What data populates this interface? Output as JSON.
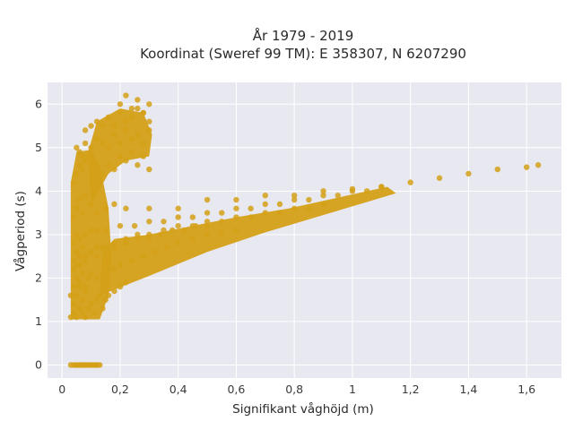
{
  "chart_data": {
    "type": "scatter",
    "title_line1": "År 1979 - 2019",
    "title_line2": "Koordinat (Sweref 99 TM): E 358307, N 6207290",
    "xlabel": "Signifikant våghöjd (m)",
    "ylabel": "Vågperiod (s)",
    "xlim": [
      -0.05,
      1.72
    ],
    "ylim": [
      -0.3,
      6.5
    ],
    "grid": true,
    "legend": "none",
    "colors": {
      "point": "#d4a017",
      "plot_bg": "#e8e8f0",
      "grid": "#ffffff"
    },
    "x_ticks": [
      {
        "value": 0,
        "label": "0"
      },
      {
        "value": 0.2,
        "label": "0,2"
      },
      {
        "value": 0.4,
        "label": "0,4"
      },
      {
        "value": 0.6,
        "label": "0,6"
      },
      {
        "value": 0.8,
        "label": "0,8"
      },
      {
        "value": 1.0,
        "label": "1"
      },
      {
        "value": 1.2,
        "label": "1,2"
      },
      {
        "value": 1.4,
        "label": "1,4"
      },
      {
        "value": 1.6,
        "label": "1,6"
      }
    ],
    "y_ticks": [
      {
        "value": 0,
        "label": "0"
      },
      {
        "value": 1,
        "label": "1"
      },
      {
        "value": 2,
        "label": "2"
      },
      {
        "value": 3,
        "label": "3"
      },
      {
        "value": 4,
        "label": "4"
      },
      {
        "value": 5,
        "label": "5"
      },
      {
        "value": 6,
        "label": "6"
      }
    ],
    "series": [
      {
        "x": [
          0.03,
          0.04,
          0.05,
          0.06,
          0.07,
          0.08,
          0.09,
          0.1,
          0.11,
          0.12,
          0.13,
          0.03,
          0.04,
          0.04,
          0.05,
          0.05,
          0.06,
          0.06,
          0.07,
          0.07,
          0.08,
          0.08,
          0.09,
          0.1,
          0.11,
          0.12,
          0.13,
          0.14,
          0.15,
          0.16,
          0.18,
          0.2,
          0.22,
          0.03,
          0.04,
          0.05,
          0.06,
          0.07,
          0.08,
          0.09,
          0.1,
          0.12,
          0.14,
          0.16,
          0.18,
          0.2,
          0.24,
          0.28,
          0.32,
          0.36,
          0.4,
          0.45,
          0.5,
          0.55,
          0.6,
          0.04,
          0.05,
          0.06,
          0.07,
          0.08,
          0.1,
          0.12,
          0.15,
          0.18,
          0.22,
          0.26,
          0.3,
          0.35,
          0.4,
          0.45,
          0.5,
          0.55,
          0.6,
          0.65,
          0.7,
          0.75,
          0.8,
          0.85,
          0.9,
          0.04,
          0.05,
          0.06,
          0.08,
          0.1,
          0.12,
          0.15,
          0.2,
          0.25,
          0.3,
          0.35,
          0.4,
          0.45,
          0.5,
          0.55,
          0.6,
          0.65,
          0.7,
          0.75,
          0.8,
          0.85,
          0.9,
          0.95,
          1.0,
          1.05,
          1.1,
          0.04,
          0.05,
          0.06,
          0.07,
          0.08,
          0.1,
          0.12,
          0.15,
          0.18,
          0.22,
          0.3,
          0.4,
          0.5,
          0.6,
          0.7,
          0.8,
          0.9,
          1.0,
          1.1,
          1.2,
          1.3,
          1.4,
          1.5,
          1.6,
          1.64,
          0.04,
          0.05,
          0.06,
          0.07,
          0.08,
          0.09,
          0.1,
          0.12,
          0.14,
          0.16,
          0.18,
          0.2,
          0.22,
          0.24,
          0.26,
          0.28,
          0.3,
          0.05,
          0.06,
          0.07,
          0.08,
          0.1,
          0.12,
          0.14,
          0.16,
          0.18,
          0.2,
          0.22,
          0.24,
          0.26,
          0.28,
          0.3,
          0.08,
          0.1,
          0.12,
          0.14,
          0.16,
          0.18,
          0.2,
          0.22,
          0.24,
          0.26,
          0.28,
          0.3,
          0.2,
          0.22,
          0.24,
          0.26,
          0.28,
          0.3,
          0.04,
          0.05,
          0.06,
          0.08,
          0.1,
          0.12,
          0.14,
          0.16,
          0.18,
          0.22,
          0.26,
          0.3,
          0.34,
          0.38,
          0.42,
          0.46,
          0.5
        ],
        "y": [
          0,
          0,
          0,
          0,
          0,
          0,
          0,
          0,
          0,
          0,
          0,
          1.1,
          1.2,
          1.4,
          1.1,
          1.6,
          1.3,
          1.8,
          1.2,
          1.5,
          1.1,
          1.7,
          1.3,
          1.4,
          1.2,
          1.5,
          1.6,
          1.3,
          1.5,
          1.6,
          1.7,
          1.8,
          1.9,
          1.6,
          1.8,
          2.0,
          1.9,
          2.1,
          1.8,
          2.0,
          2.1,
          2.0,
          2.1,
          2.2,
          2.2,
          2.3,
          2.4,
          2.5,
          2.6,
          2.7,
          2.8,
          2.9,
          3.0,
          3.05,
          3.1,
          2.4,
          2.6,
          2.3,
          2.7,
          2.5,
          2.6,
          2.7,
          2.7,
          2.8,
          2.9,
          3.0,
          3.0,
          3.1,
          3.2,
          3.2,
          3.3,
          3.3,
          3.4,
          3.4,
          3.5,
          3.5,
          3.6,
          3.6,
          3.7,
          2.8,
          3.0,
          2.9,
          3.0,
          3.1,
          3.1,
          3.1,
          3.2,
          3.2,
          3.3,
          3.3,
          3.4,
          3.4,
          3.5,
          3.5,
          3.6,
          3.6,
          3.7,
          3.7,
          3.8,
          3.8,
          3.9,
          3.9,
          4.0,
          4.0,
          4.1,
          3.4,
          3.6,
          3.8,
          3.5,
          3.9,
          3.7,
          3.5,
          3.6,
          3.7,
          3.6,
          3.6,
          3.6,
          3.8,
          3.8,
          3.9,
          3.9,
          4.0,
          4.05,
          4.1,
          4.2,
          4.3,
          4.4,
          4.5,
          4.55,
          4.6,
          4.2,
          4.4,
          4.6,
          4.5,
          4.7,
          4.8,
          4.6,
          4.5,
          4.4,
          4.6,
          4.5,
          4.8,
          4.7,
          4.9,
          4.6,
          4.8,
          4.5,
          5.0,
          4.9,
          4.8,
          5.1,
          5.0,
          5.2,
          5.1,
          5.0,
          5.3,
          5.1,
          5.4,
          5.2,
          5.3,
          5.1,
          5.4,
          5.4,
          5.5,
          5.6,
          5.5,
          5.7,
          5.5,
          5.8,
          5.6,
          5.7,
          5.9,
          5.8,
          5.6,
          6.0,
          6.2,
          5.9,
          6.1,
          5.8,
          6.0,
          2.2,
          2.3,
          2.5,
          2.4,
          2.6,
          2.5,
          2.7,
          2.6,
          2.7,
          2.8,
          2.9,
          2.9,
          3.0,
          3.1,
          3.1,
          3.2,
          3.2
        ]
      }
    ]
  }
}
